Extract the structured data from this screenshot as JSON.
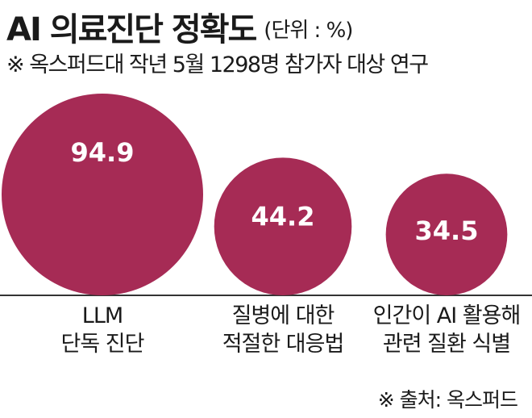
{
  "title": "AI 의료진단 정확도",
  "unit": "(단위 : %)",
  "subtitle": "※ 옥스퍼드대 작년 5월 1298명 참가자 대상 연구",
  "source": "※ 출처: 옥스퍼드",
  "colors": {
    "bubble": "#a62b55",
    "bubble_text": "#ffffff",
    "axis": "#333333"
  },
  "chart_data": {
    "type": "bubble",
    "title": "AI 의료진단 정확도",
    "unit": "%",
    "categories": [
      [
        "LLM",
        "단독 진단"
      ],
      [
        "질병에 대한",
        "적절한 대응법"
      ],
      [
        "인간이 AI 활용해",
        "관련 질환 식별"
      ]
    ],
    "values": [
      94.9,
      44.2,
      34.5
    ],
    "value_labels": [
      "94.9",
      "44.2",
      "34.5"
    ]
  }
}
